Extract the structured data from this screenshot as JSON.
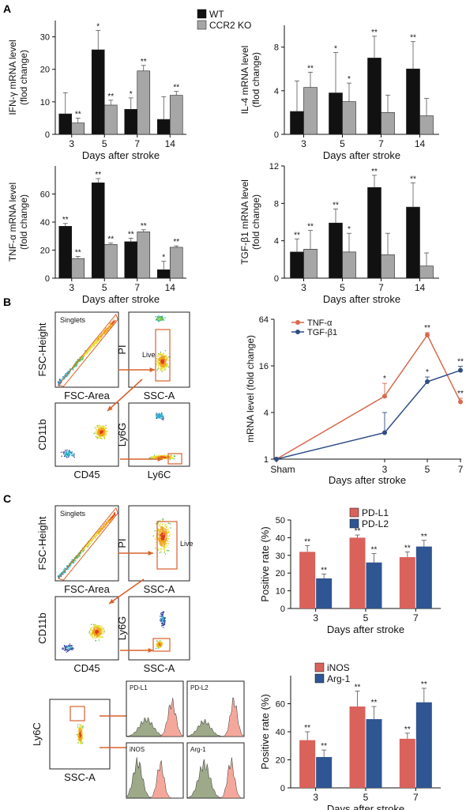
{
  "panel_labels": [
    "A",
    "B",
    "C"
  ],
  "colors": {
    "wt": "#111111",
    "ko": "#a6a6a6",
    "tnf_line": "#d9694e",
    "tgf_line": "#2f4d86",
    "pd_l1": "#d9625b",
    "pd_l2": "#2f5592",
    "inos": "#d9625b",
    "arg1": "#2f5592",
    "gate": "#d9622b",
    "hist_ctrl": "#8c9a74",
    "hist_stain": "#f2998a"
  },
  "flow": {
    "B": {
      "singlets_gate": "Singlets",
      "live_gate": "Live",
      "plots": [
        {
          "x": "FSC-Area",
          "y": "FSC-Height"
        },
        {
          "x": "SSC-A",
          "y": "PI"
        },
        {
          "x": "CD45",
          "y": "CD11b"
        },
        {
          "x": "Ly6C",
          "y": "Ly6G"
        }
      ]
    },
    "C": {
      "singlets_gate": "Singlets",
      "live_gate": "Live",
      "plots": [
        {
          "x": "FSC-Area",
          "y": "FSC-Height"
        },
        {
          "x": "SSC-A",
          "y": "PI"
        },
        {
          "x": "CD45",
          "y": "CD11b"
        },
        {
          "x": "SSC-A",
          "y": "Ly6G"
        },
        {
          "x": "SSC-A",
          "y": "Ly6C"
        }
      ],
      "histograms": [
        "PD-L1",
        "PD-L2",
        "iNOS",
        "Arg-1"
      ]
    }
  },
  "chart_data": [
    {
      "id": "ifn",
      "type": "bar",
      "categories": [
        "3",
        "5",
        "7",
        "14"
      ],
      "xlabel": "Days after stroke",
      "ylabel": [
        "IFN-γ mRNA level",
        "(flod change)"
      ],
      "ylim": [
        0,
        35
      ],
      "yticks": [
        0,
        10,
        20,
        30
      ],
      "legend": [
        "WT",
        "CCR2 KO"
      ],
      "series": [
        {
          "name": "WT",
          "values": [
            6.3,
            26,
            7.7,
            4.6
          ],
          "errors": [
            6.5,
            6,
            3.5,
            7
          ],
          "sig": [
            "",
            "*",
            "*",
            ""
          ]
        },
        {
          "name": "CCR2 KO",
          "values": [
            3.5,
            9,
            19.5,
            12
          ],
          "errors": [
            1.5,
            1.5,
            1.7,
            1.2
          ],
          "sig": [
            "**",
            "**",
            "**",
            "**"
          ]
        }
      ]
    },
    {
      "id": "il4",
      "type": "bar",
      "categories": [
        "3",
        "5",
        "7",
        "14"
      ],
      "xlabel": "Days after stroke",
      "ylabel": [
        "IL-4 mRNA level",
        "(flod change)"
      ],
      "ylim": [
        0,
        10
      ],
      "yticks": [
        0,
        4,
        8
      ],
      "series": [
        {
          "name": "WT",
          "values": [
            2.1,
            3.8,
            7,
            6
          ],
          "errors": [
            2.8,
            3.7,
            2,
            2.5
          ],
          "sig": [
            "",
            "*",
            "**",
            "**"
          ]
        },
        {
          "name": "CCR2 KO",
          "values": [
            4.3,
            3,
            2,
            1.7
          ],
          "errors": [
            1.4,
            1.7,
            1.6,
            1.6
          ],
          "sig": [
            "**",
            "*",
            "",
            ""
          ]
        }
      ]
    },
    {
      "id": "tnf",
      "type": "bar",
      "categories": [
        "3",
        "5",
        "7",
        "14"
      ],
      "xlabel": "Days after stroke",
      "ylabel": [
        "TNF-α mRNA level",
        "(fold change)"
      ],
      "ylim": [
        0,
        80
      ],
      "yticks": [
        0,
        20,
        40,
        60
      ],
      "series": [
        {
          "name": "WT",
          "values": [
            37,
            68,
            26,
            6
          ],
          "errors": [
            2,
            3,
            2.5,
            6
          ],
          "sig": [
            "**",
            "**",
            "**",
            "*"
          ]
        },
        {
          "name": "CCR2 KO",
          "values": [
            14,
            24,
            33,
            22
          ],
          "errors": [
            1.5,
            1,
            1.5,
            1
          ],
          "sig": [
            "**",
            "**",
            "**",
            "**"
          ]
        }
      ]
    },
    {
      "id": "tgf",
      "type": "bar",
      "categories": [
        "3",
        "5",
        "7",
        "14"
      ],
      "xlabel": "Days after stroke",
      "ylabel": [
        "TGF-β1 mRNA level",
        "(fold change)"
      ],
      "ylim": [
        0,
        12
      ],
      "yticks": [
        0,
        4,
        8,
        12
      ],
      "series": [
        {
          "name": "WT",
          "values": [
            2.8,
            5.9,
            9.7,
            7.6
          ],
          "errors": [
            1.4,
            1.5,
            1.3,
            2.6
          ],
          "sig": [
            "**",
            "**",
            "**",
            "**"
          ]
        },
        {
          "name": "CCR2 KO",
          "values": [
            3.1,
            2.8,
            2.5,
            1.3
          ],
          "errors": [
            2,
            2,
            2.3,
            1.4
          ],
          "sig": [
            "**",
            "*",
            "",
            ""
          ]
        }
      ]
    },
    {
      "id": "line",
      "type": "line",
      "categories": [
        "Sham",
        "3",
        "5",
        "7"
      ],
      "xlabel": "Days after stroke",
      "ylabel": [
        "mRNA level (fold change)"
      ],
      "yscale": "log2",
      "ylim": [
        1,
        64
      ],
      "yticks": [
        1,
        4,
        16,
        64
      ],
      "legend": [
        "TNF-α",
        "TGF-β1"
      ],
      "series": [
        {
          "name": "TNF-α",
          "values": [
            1,
            6.5,
            40,
            5.5
          ],
          "errors": [
            0,
            3,
            3,
            0.6
          ],
          "sig": [
            "",
            "*",
            "**",
            "**"
          ]
        },
        {
          "name": "TGF-β1",
          "values": [
            1,
            2.2,
            10,
            14
          ],
          "errors": [
            0,
            1.8,
            1.5,
            1.8
          ],
          "sig": [
            "",
            "",
            "*",
            "**"
          ]
        }
      ]
    },
    {
      "id": "pdl",
      "type": "bar",
      "categories": [
        "3",
        "5",
        "7"
      ],
      "xlabel": "Days after stroke",
      "ylabel": [
        "Positive rate (%)"
      ],
      "ylim": [
        0,
        50
      ],
      "yticks": [
        0,
        10,
        20,
        30,
        40,
        50
      ],
      "legend": [
        "PD-L1",
        "PD-L2"
      ],
      "series": [
        {
          "name": "PD-L1",
          "values": [
            32,
            40,
            29
          ],
          "errors": [
            3.5,
            1.5,
            3
          ],
          "sig": [
            "**",
            "**",
            "**"
          ]
        },
        {
          "name": "PD-L2",
          "values": [
            17,
            26,
            35
          ],
          "errors": [
            2.5,
            5,
            3.5
          ],
          "sig": [
            "**",
            "**",
            "**"
          ]
        }
      ]
    },
    {
      "id": "inos",
      "type": "bar",
      "categories": [
        "3",
        "5",
        "7"
      ],
      "xlabel": "Days after stroke",
      "ylabel": [
        "Positive rate (%)"
      ],
      "ylim": [
        0,
        80
      ],
      "yticks": [
        0,
        20,
        40,
        60
      ],
      "legend": [
        "iNOS",
        "Arg-1"
      ],
      "series": [
        {
          "name": "iNOS",
          "values": [
            34,
            58,
            35
          ],
          "errors": [
            6,
            11,
            4
          ],
          "sig": [
            "**",
            "**",
            "**"
          ]
        },
        {
          "name": "Arg-1",
          "values": [
            22,
            49,
            61
          ],
          "errors": [
            5,
            9,
            10
          ],
          "sig": [
            "**",
            "**",
            "**"
          ]
        }
      ]
    }
  ]
}
